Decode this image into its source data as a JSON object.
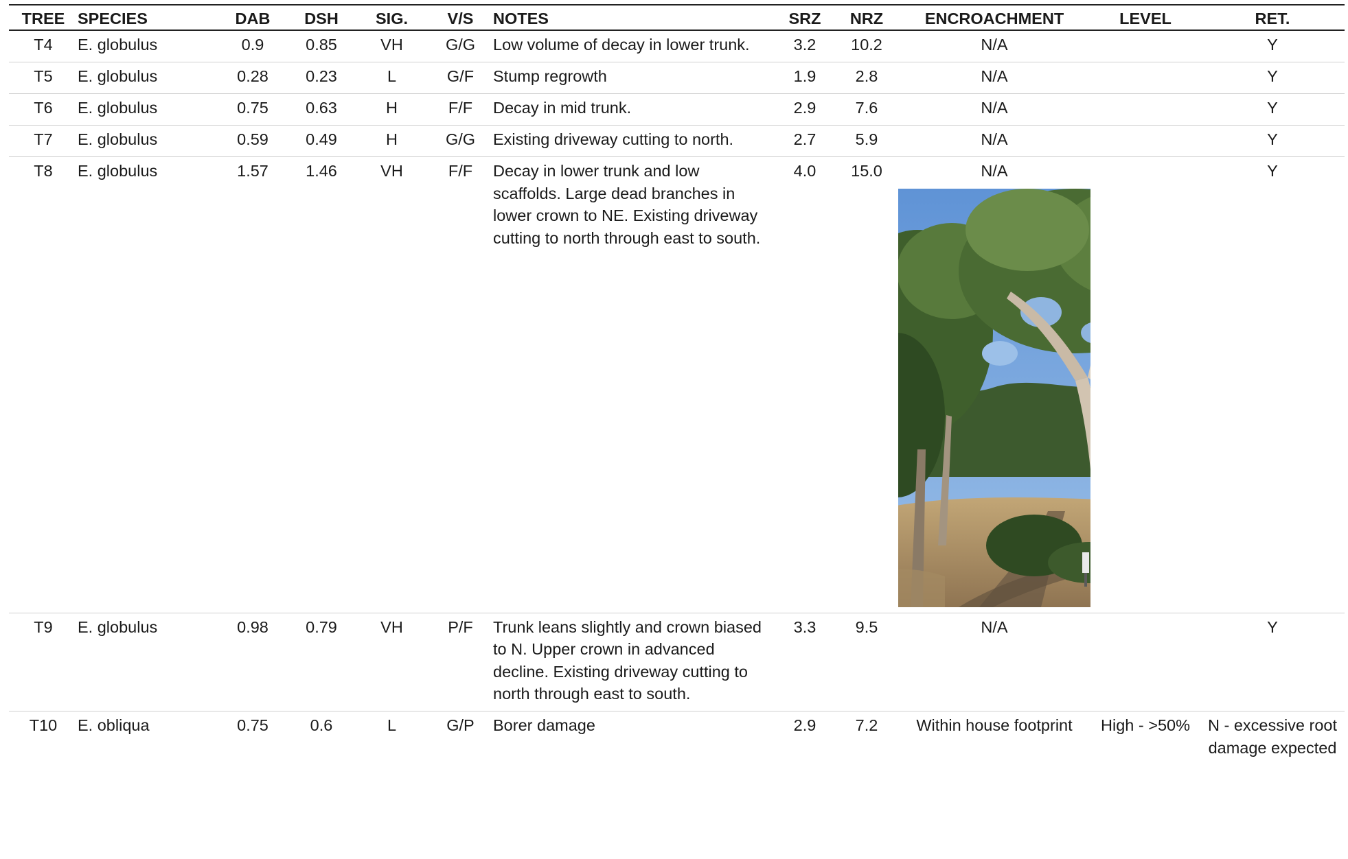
{
  "headers": {
    "tree": "TREE",
    "species": "SPECIES",
    "dab": "DAB",
    "dsh": "DSH",
    "sig": "SIG.",
    "vs": "V/S",
    "notes": "NOTES",
    "srz": "SRZ",
    "nrz": "NRZ",
    "encroachment": "ENCROACHMENT",
    "level": "LEVEL",
    "ret": "RET."
  },
  "rows": [
    {
      "tree": "T4",
      "species": "E. globulus",
      "dab": "0.9",
      "dsh": "0.85",
      "sig": "VH",
      "vs": "G/G",
      "notes": "Low volume of decay in lower trunk.",
      "srz": "3.2",
      "nrz": "10.2",
      "encroachment": "N/A",
      "level": "",
      "ret": "Y"
    },
    {
      "tree": "T5",
      "species": "E. globulus",
      "dab": "0.28",
      "dsh": "0.23",
      "sig": "L",
      "vs": "G/F",
      "notes": "Stump regrowth",
      "srz": "1.9",
      "nrz": "2.8",
      "encroachment": "N/A",
      "level": "",
      "ret": "Y"
    },
    {
      "tree": "T6",
      "species": "E. globulus",
      "dab": "0.75",
      "dsh": "0.63",
      "sig": "H",
      "vs": "F/F",
      "notes": "Decay in mid trunk.",
      "srz": "2.9",
      "nrz": "7.6",
      "encroachment": "N/A",
      "level": "",
      "ret": "Y"
    },
    {
      "tree": "T7",
      "species": "E. globulus",
      "dab": "0.59",
      "dsh": "0.49",
      "sig": "H",
      "vs": "G/G",
      "notes": "Existing driveway cutting to north.",
      "srz": "2.7",
      "nrz": "5.9",
      "encroachment": "N/A",
      "level": "",
      "ret": "Y"
    },
    {
      "tree": "T8",
      "species": "E. globulus",
      "dab": "1.57",
      "dsh": "1.46",
      "sig": "VH",
      "vs": "F/F",
      "notes": "Decay in lower trunk and low scaffolds. Large dead branches in lower crown to NE. Existing driveway cutting to north through east to south.",
      "srz": "4.0",
      "nrz": "15.0",
      "encroachment": "N/A",
      "level": "",
      "ret": "Y"
    },
    {
      "tree": "T9",
      "species": "E. globulus",
      "dab": "0.98",
      "dsh": "0.79",
      "sig": "VH",
      "vs": "P/F",
      "notes": "Trunk leans slightly and crown biased to N. Upper crown in advanced decline.  Existing driveway cutting to north through east to south.",
      "srz": "3.3",
      "nrz": "9.5",
      "encroachment": "N/A",
      "level": "",
      "ret": "Y"
    },
    {
      "tree": "T10",
      "species": "E. obliqua",
      "dab": "0.75",
      "dsh": "0.6",
      "sig": "L",
      "vs": "G/P",
      "notes": "Borer damage",
      "srz": "2.9",
      "nrz": "7.2",
      "encroachment": "Within house footprint",
      "level": "High - >50%",
      "ret": "N - excessive root damage expected"
    }
  ],
  "photo": {
    "icon": "tree-photo-t8",
    "colors": {
      "sky": "#6f9fd8",
      "foliage_dark": "#2e4a26",
      "foliage_mid": "#587a3c",
      "grass": "#b59a6a",
      "path": "#6b5a46",
      "trunk": "#cdbfae"
    }
  }
}
